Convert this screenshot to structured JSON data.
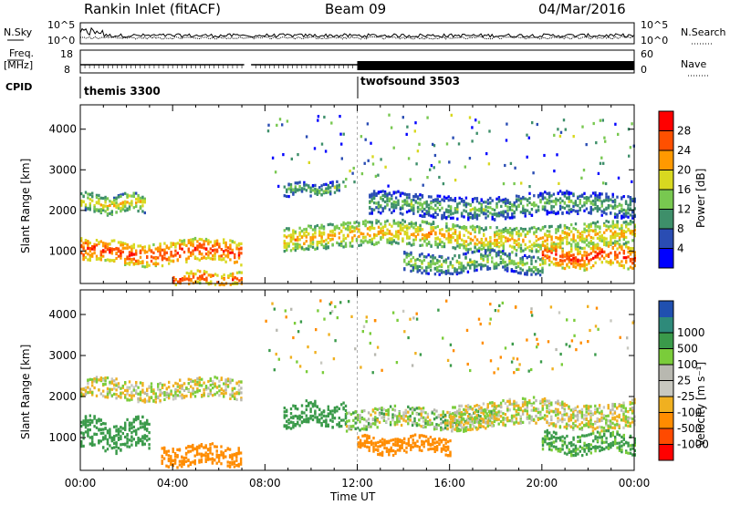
{
  "header": {
    "station": "Rankin Inlet (fitACF)",
    "beam": "Beam 09",
    "date": "04/Mar/2016"
  },
  "noise_panel": {
    "left_label": "N.Sky",
    "right_label": "N.Search",
    "left_ticks": [
      "10^5",
      "10^0"
    ],
    "right_ticks": [
      "10^5",
      "10^0"
    ]
  },
  "freq_panel": {
    "left_label_1": "Freq.",
    "left_label_2": "[MHz]",
    "right_label": "Nave",
    "left_ticks": [
      "18",
      "8"
    ],
    "right_ticks": [
      "60",
      "0"
    ]
  },
  "cpid_panel": {
    "label": "CPID",
    "programs": [
      {
        "name": "themis 3300",
        "start_hour": 0
      },
      {
        "name": "twofsound 3503",
        "start_hour": 12
      }
    ]
  },
  "colors": {
    "power_scale": [
      "#0000ff",
      "#2a4db3",
      "#3e8f6a",
      "#78c850",
      "#d8d820",
      "#ff9900",
      "#ff5000",
      "#ff0000"
    ],
    "velocity_scale": [
      "#ff0000",
      "#ff4a00",
      "#ff8c00",
      "#f0b020",
      "#c8c8c0",
      "#b8b8b0",
      "#7acc3a",
      "#3a9a4a",
      "#2e8a7a",
      "#2050b0"
    ]
  },
  "chart_data": [
    {
      "type": "heatmap",
      "name": "power",
      "ylabel": "Slant Range [km]",
      "xlabel": "",
      "xlim": [
        0,
        24
      ],
      "ylim": [
        200,
        4600
      ],
      "yticks": [
        "1000",
        "2000",
        "3000",
        "4000"
      ],
      "colorbar": {
        "label": "Power [dB]",
        "range": [
          0,
          32
        ],
        "ticks": [
          "4",
          "8",
          "12",
          "16",
          "20",
          "24",
          "28"
        ]
      },
      "features": [
        {
          "t_start": 0,
          "t_end": 7.0,
          "range_center": 1000,
          "range_width": 350,
          "level": 28
        },
        {
          "t_start": 0,
          "t_end": 2.8,
          "range_center": 2200,
          "range_width": 280,
          "level": 20
        },
        {
          "t_start": 4.0,
          "t_end": 7.0,
          "range_center": 350,
          "range_width": 200,
          "level": 28
        },
        {
          "t_start": 8.8,
          "t_end": 24,
          "range_center": 1400,
          "range_width": 380,
          "level": 22
        },
        {
          "t_start": 8.8,
          "t_end": 11.2,
          "range_center": 2550,
          "range_width": 200,
          "level": 14
        },
        {
          "t_start": 12.5,
          "t_end": 24,
          "range_center": 2150,
          "range_width": 350,
          "level": 14
        },
        {
          "t_start": 14.0,
          "t_end": 20.0,
          "range_center": 750,
          "range_width": 300,
          "level": 16
        },
        {
          "t_start": 20.0,
          "t_end": 24,
          "range_center": 900,
          "range_width": 350,
          "level": 28
        }
      ]
    },
    {
      "type": "heatmap",
      "name": "velocity",
      "ylabel": "Slant Range [km]",
      "xlabel": "Time UT",
      "xlim": [
        0,
        24
      ],
      "ylim": [
        200,
        4600
      ],
      "xticks": [
        "00:00",
        "04:00",
        "08:00",
        "12:00",
        "16:00",
        "20:00",
        "00:00"
      ],
      "yticks": [
        "1000",
        "2000",
        "3000",
        "4000"
      ],
      "colorbar": {
        "label": "Velocity [m s⁻¹]",
        "ticks": [
          "1000",
          "500",
          "100",
          "25",
          "-25",
          "-100",
          "-500",
          "-1000"
        ]
      },
      "features": [
        {
          "t_start": 0,
          "t_end": 3.0,
          "range_center": 1100,
          "range_width": 450,
          "value": 300
        },
        {
          "t_start": 0,
          "t_end": 7.0,
          "range_center": 2200,
          "range_width": 300,
          "value": 0
        },
        {
          "t_start": 3.5,
          "t_end": 7.0,
          "range_center": 600,
          "range_width": 300,
          "value": -300
        },
        {
          "t_start": 8.8,
          "t_end": 11.5,
          "range_center": 1600,
          "range_width": 350,
          "value": 200
        },
        {
          "t_start": 11.5,
          "t_end": 18.0,
          "range_center": 1500,
          "range_width": 300,
          "value": 50
        },
        {
          "t_start": 12.0,
          "t_end": 16.0,
          "range_center": 850,
          "range_width": 250,
          "value": -300
        },
        {
          "t_start": 16.0,
          "t_end": 24,
          "range_center": 1600,
          "range_width": 400,
          "value": 0
        },
        {
          "t_start": 20.0,
          "t_end": 24,
          "range_center": 900,
          "range_width": 300,
          "value": 150
        }
      ]
    }
  ]
}
